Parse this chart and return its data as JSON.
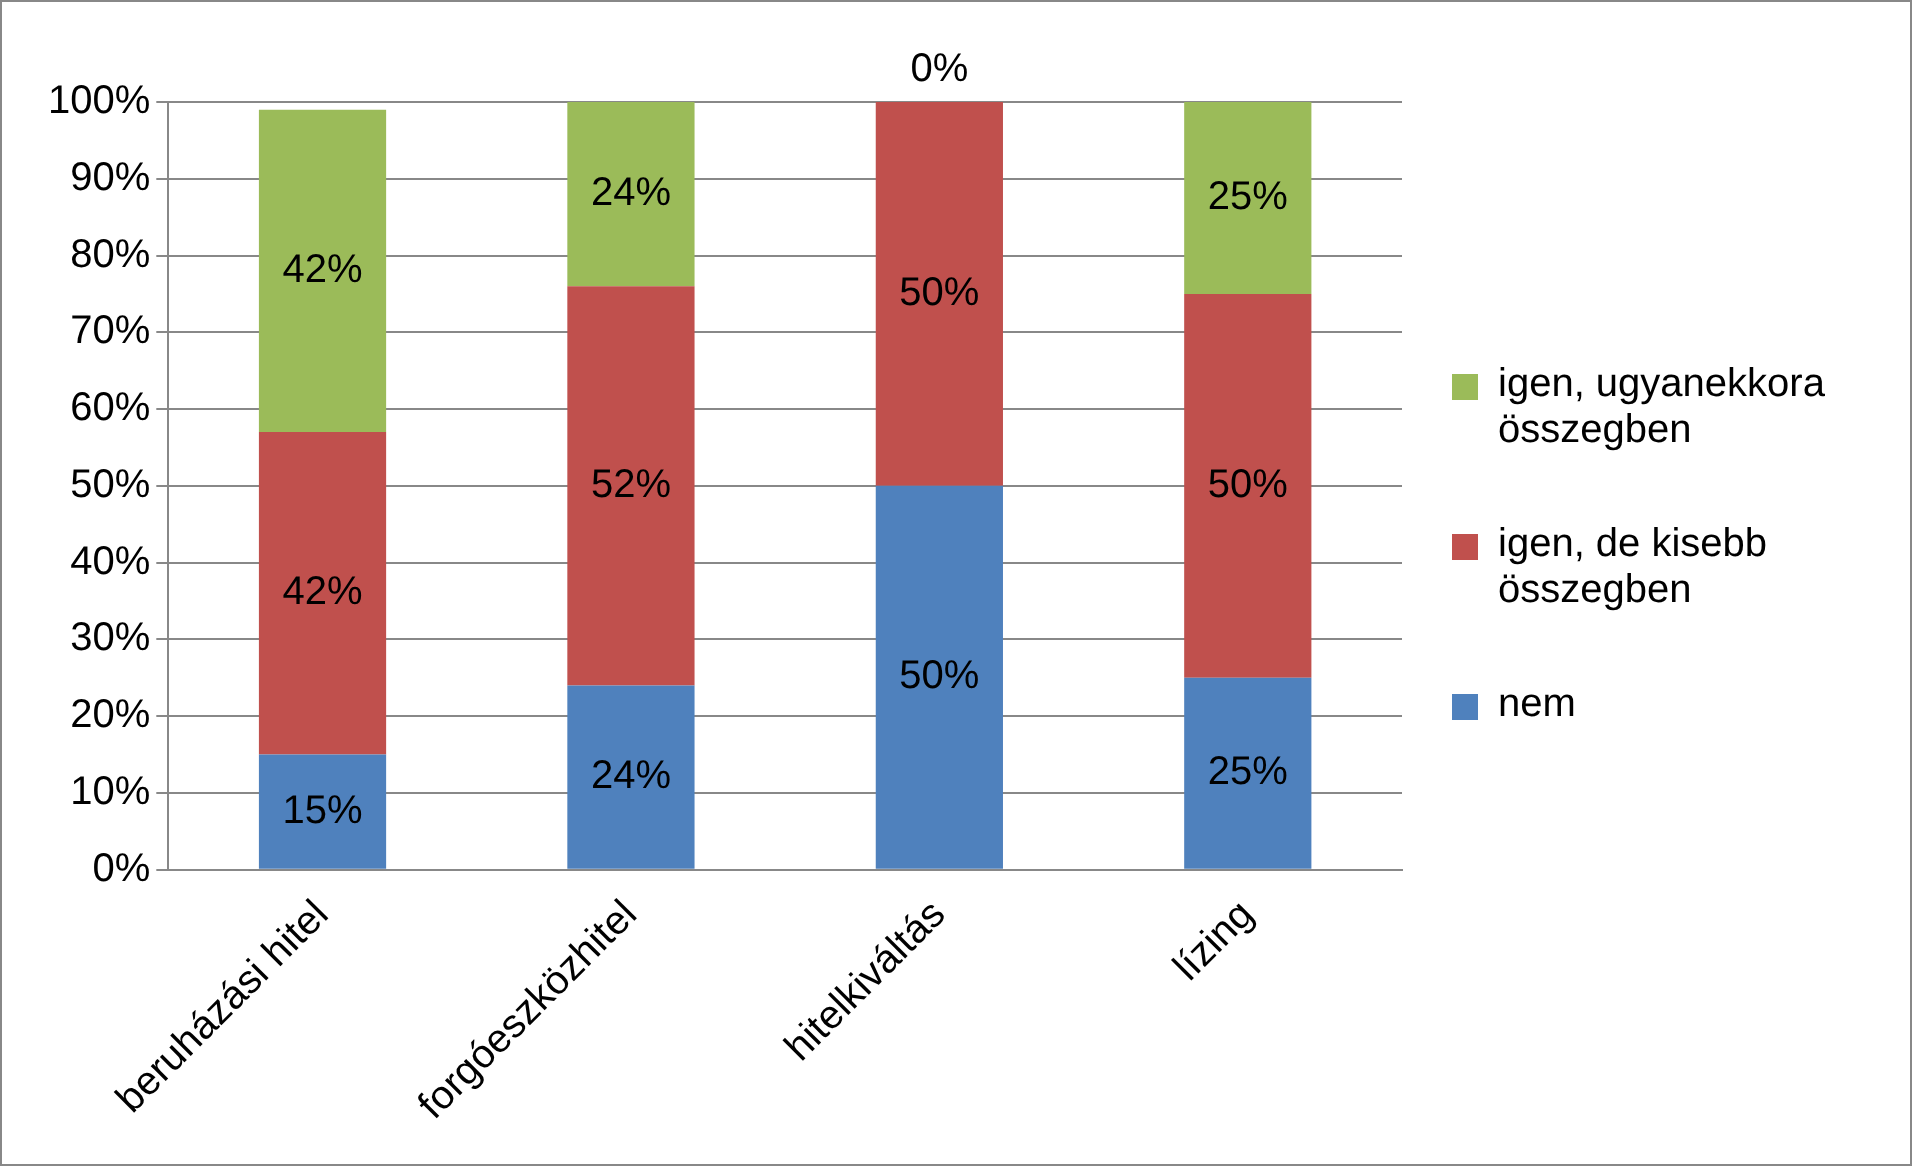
{
  "chart_data": {
    "type": "bar",
    "stacked": true,
    "categories": [
      "beruházási hitel",
      "forgóeszközhitel",
      "hitelkiváltás",
      "lízing"
    ],
    "series": [
      {
        "name": "nem",
        "color": "#4f81bd",
        "values": [
          15,
          24,
          50,
          25
        ],
        "value_labels": [
          "15%",
          "24%",
          "50%",
          "25%"
        ]
      },
      {
        "name": "igen, de kisebb összegben",
        "color": "#c0504d",
        "values": [
          42,
          52,
          50,
          50
        ],
        "value_labels": [
          "42%",
          "52%",
          "50%",
          "50%"
        ]
      },
      {
        "name": "igen, ugyanekkora összegben",
        "color": "#9bbb59",
        "values": [
          42,
          24,
          0,
          25
        ],
        "value_labels": [
          "42%",
          "24%",
          "0%",
          "25%"
        ]
      }
    ],
    "ylim": [
      0,
      100
    ],
    "yticks": [
      {
        "value": 0,
        "label": "0%"
      },
      {
        "value": 10,
        "label": "10%"
      },
      {
        "value": 20,
        "label": "20%"
      },
      {
        "value": 30,
        "label": "30%"
      },
      {
        "value": 40,
        "label": "40%"
      },
      {
        "value": 50,
        "label": "50%"
      },
      {
        "value": 60,
        "label": "60%"
      },
      {
        "value": 70,
        "label": "70%"
      },
      {
        "value": 80,
        "label": "80%"
      },
      {
        "value": 90,
        "label": "90%"
      },
      {
        "value": 100,
        "label": "100%"
      }
    ],
    "grid": "y",
    "legend": "right"
  }
}
